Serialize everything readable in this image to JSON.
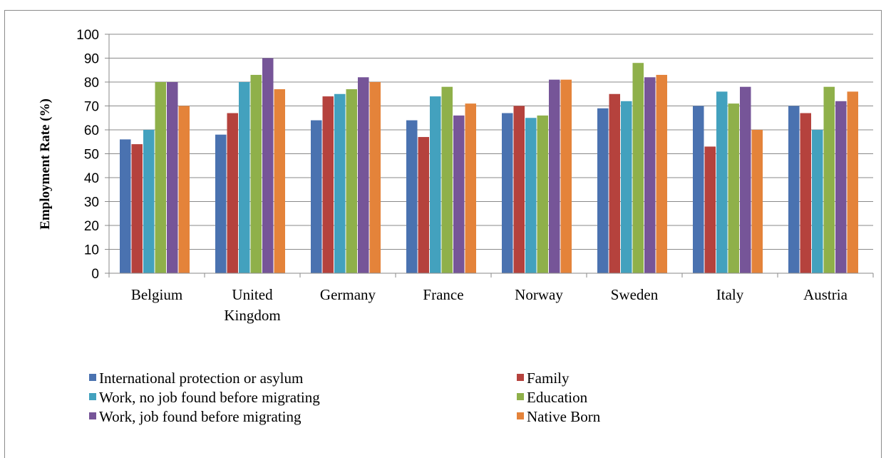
{
  "chart_data": {
    "type": "bar",
    "title": "",
    "xlabel": "",
    "ylabel": "Employment Rate (%)",
    "ylim": [
      0,
      100
    ],
    "yticks": [
      0,
      10,
      20,
      30,
      40,
      50,
      60,
      70,
      80,
      90,
      100
    ],
    "grid": true,
    "legend_position": "bottom",
    "categories": [
      [
        "Belgium"
      ],
      [
        "United",
        "Kingdom"
      ],
      [
        "Germany"
      ],
      [
        "France"
      ],
      [
        "Norway"
      ],
      [
        "Sweden"
      ],
      [
        "Italy"
      ],
      [
        "Austria"
      ]
    ],
    "series": [
      {
        "name": "International  protection or asylum",
        "color": "#4a72b0",
        "values": [
          56,
          58,
          64,
          64,
          67,
          69,
          70,
          70
        ]
      },
      {
        "name": "Family",
        "color": "#b5423d",
        "values": [
          54,
          67,
          74,
          57,
          70,
          75,
          53,
          67
        ]
      },
      {
        "name": "Work,  no job found before  migrating",
        "color": "#43a1be",
        "values": [
          60,
          80,
          75,
          74,
          65,
          72,
          76,
          60
        ]
      },
      {
        "name": "Education",
        "color": "#8fb04a",
        "values": [
          80,
          83,
          77,
          78,
          66,
          88,
          71,
          78
        ]
      },
      {
        "name": "Work,  job found before  migrating",
        "color": "#765598",
        "values": [
          80,
          90,
          82,
          66,
          81,
          82,
          78,
          72
        ]
      },
      {
        "name": "Native Born",
        "color": "#e4833a",
        "values": [
          70,
          77,
          80,
          71,
          81,
          83,
          60,
          76
        ]
      }
    ]
  }
}
